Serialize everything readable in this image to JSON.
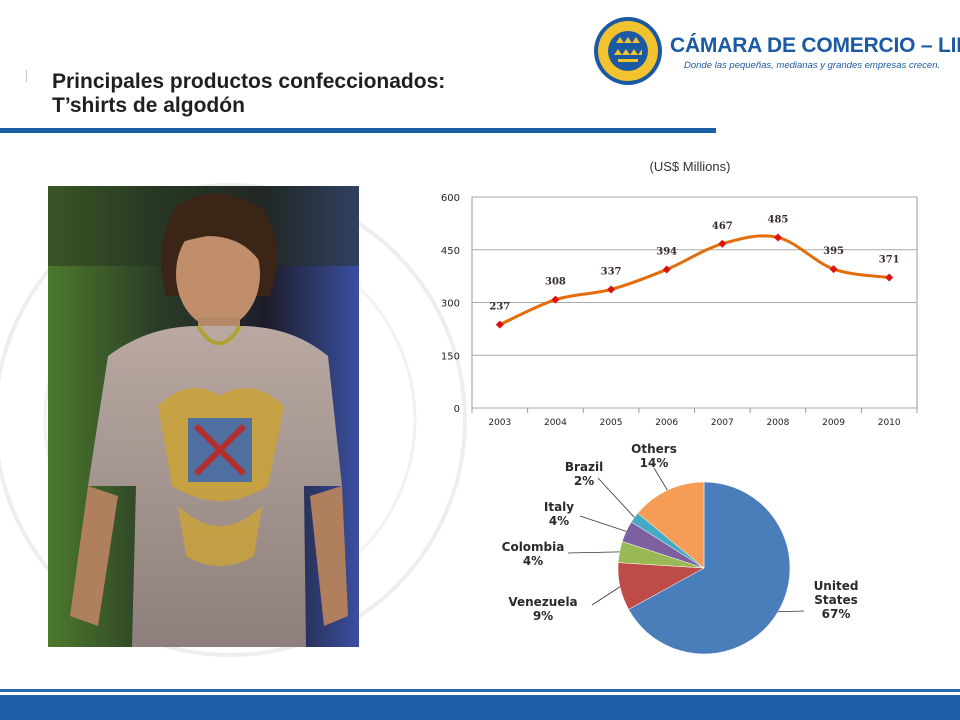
{
  "slide": {
    "title_line1": "Principales productos confeccionados:",
    "title_line2": "T’shirts de algodón"
  },
  "logo": {
    "name": "CÁMARA DE COMERCIO – LIMA",
    "tagline": "Donde las pequeñas, medianas y grandes empresas crecen.",
    "seal_text_top": "CÁMARA DE COMERCIO",
    "seal_text_bottom": "LIMA"
  },
  "colors": {
    "brand_blue": "#1c5fa8",
    "line_orange": "#e46c0a",
    "marker_red": "#e01010",
    "pie_us": "#4a7ebb",
    "pie_venezuela": "#be4b48",
    "pie_colombia": "#98b954",
    "pie_italy": "#7d60a0",
    "pie_brazil": "#46aac5",
    "pie_others": "#f59d56"
  },
  "chart_data": [
    {
      "type": "line",
      "title": "(US$ Millions)",
      "x": [
        "2003",
        "2004",
        "2005",
        "2006",
        "2007",
        "2008",
        "2009",
        "2010"
      ],
      "values": [
        237,
        308,
        337,
        394,
        467,
        485,
        395,
        371
      ],
      "data_labels": [
        "237",
        "308",
        "337",
        "394",
        "467",
        "485",
        "395",
        "371"
      ],
      "ylim": [
        0,
        600
      ],
      "yticks": [
        "0",
        "150",
        "300",
        "450",
        "600"
      ],
      "grid": true,
      "smooth": true
    },
    {
      "type": "pie",
      "slices": [
        {
          "label_lines": [
            "United",
            "States",
            "67%"
          ],
          "value": 67
        },
        {
          "label_lines": [
            "Venezuela",
            "9%"
          ],
          "value": 9
        },
        {
          "label_lines": [
            "Colombia",
            "4%"
          ],
          "value": 4
        },
        {
          "label_lines": [
            "Italy",
            "4%"
          ],
          "value": 4
        },
        {
          "label_lines": [
            "Brazil",
            "2%"
          ],
          "value": 2
        },
        {
          "label_lines": [
            "Others",
            "14%"
          ],
          "value": 14
        }
      ]
    }
  ]
}
